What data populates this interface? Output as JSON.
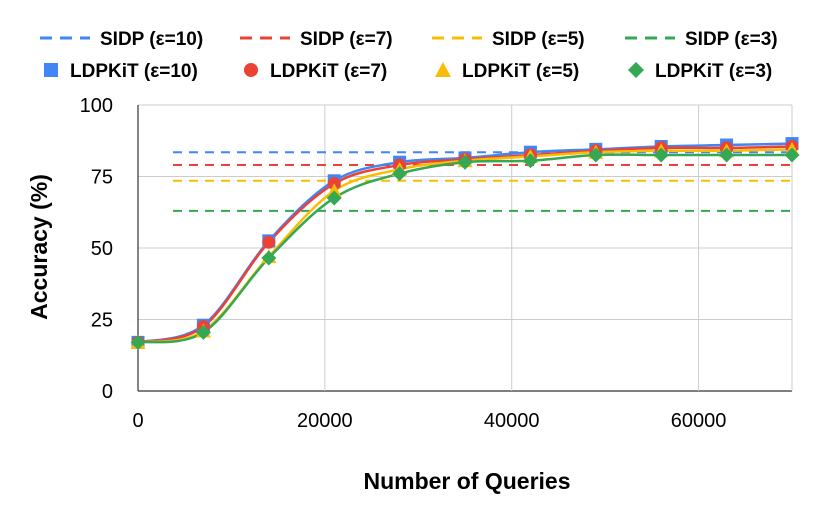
{
  "chart_data": {
    "type": "line",
    "title": "",
    "xlabel": "Number of Queries",
    "ylabel": "Accuracy (%)",
    "xlim": [
      0,
      70000
    ],
    "ylim": [
      0,
      100
    ],
    "xticks": [
      0,
      20000,
      40000,
      60000
    ],
    "xtick_labels": [
      "0",
      "20000",
      "40000",
      "60000"
    ],
    "yticks": [
      0,
      25,
      50,
      75,
      100
    ],
    "ytick_labels": [
      "0",
      "25",
      "50",
      "75",
      "100"
    ],
    "grid": true,
    "legend_position": "top",
    "x": [
      0,
      7000,
      14000,
      21000,
      28000,
      35000,
      42000,
      49000,
      56000,
      63000,
      70000
    ],
    "baselines": [
      {
        "name": "SIDP (ε=10)",
        "value": 83.5,
        "color": "#4285F4"
      },
      {
        "name": "SIDP (ε=7)",
        "value": 79,
        "color": "#EA4335"
      },
      {
        "name": "SIDP (ε=5)",
        "value": 73.5,
        "color": "#FBBC04"
      },
      {
        "name": "SIDP (ε=3)",
        "value": 63,
        "color": "#34A853"
      }
    ],
    "series": [
      {
        "name": "LDPKiT (ε=10)",
        "marker": "square",
        "color": "#4285F4",
        "values": [
          17,
          23,
          52.5,
          73.5,
          80,
          81.5,
          83.5,
          84.5,
          85.5,
          86,
          86.5
        ]
      },
      {
        "name": "LDPKiT (ε=7)",
        "marker": "circle",
        "color": "#EA4335",
        "values": [
          17,
          22.5,
          52,
          72.5,
          79,
          81,
          82.5,
          84,
          85,
          85,
          85.5
        ]
      },
      {
        "name": "LDPKiT (ε=5)",
        "marker": "triangle",
        "color": "#FBBC04",
        "values": [
          17,
          21,
          47,
          70,
          77.5,
          80.5,
          82,
          83.5,
          84,
          84,
          84.5
        ]
      },
      {
        "name": "LDPKiT (ε=3)",
        "marker": "diamond",
        "color": "#34A853",
        "values": [
          17,
          20.5,
          46.5,
          67.5,
          76,
          80,
          80.5,
          82.5,
          82.5,
          82.5,
          82.5
        ]
      }
    ]
  }
}
